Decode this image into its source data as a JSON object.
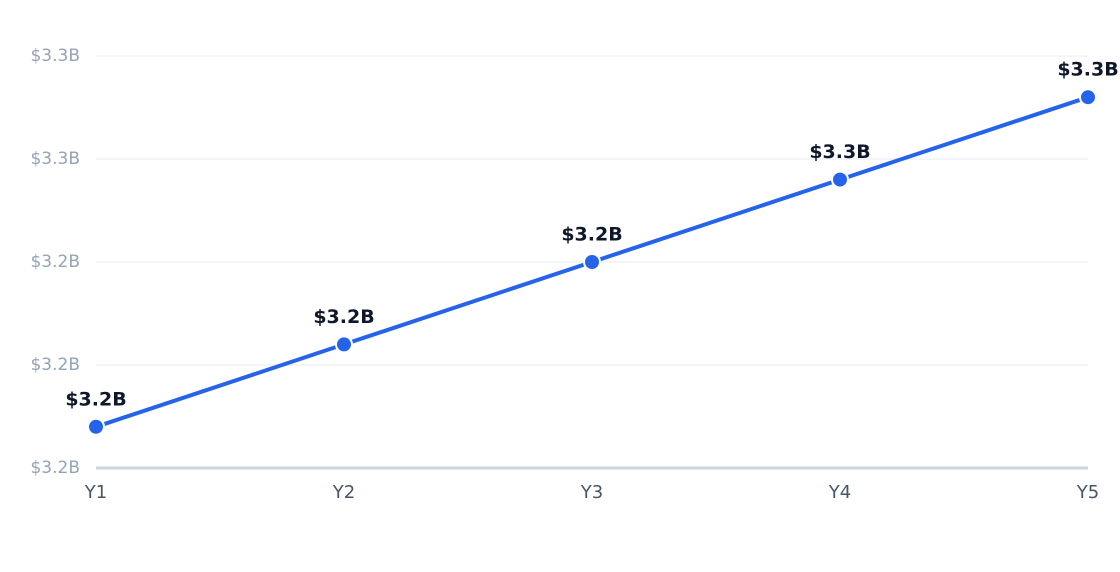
{
  "chart_data": {
    "type": "line",
    "categories": [
      "Y1",
      "Y2",
      "Y3",
      "Y4",
      "Y5"
    ],
    "series": [
      {
        "color": "#2563eb",
        "values": [
          3.208,
          3.224,
          3.24,
          3.256,
          3.272
        ],
        "value_labels": [
          "$3.2B",
          "$3.2B",
          "$3.2B",
          "$3.3B",
          "$3.3B"
        ]
      }
    ],
    "ylim": [
      3.2,
      3.28
    ],
    "yticks": [
      {
        "value": 3.2,
        "label": "$3.2B"
      },
      {
        "value": 3.22,
        "label": "$3.2B"
      },
      {
        "value": 3.24,
        "label": "$3.2B"
      },
      {
        "value": 3.26,
        "label": "$3.3B"
      },
      {
        "value": 3.28,
        "label": "$3.3B"
      }
    ],
    "grid": true
  }
}
